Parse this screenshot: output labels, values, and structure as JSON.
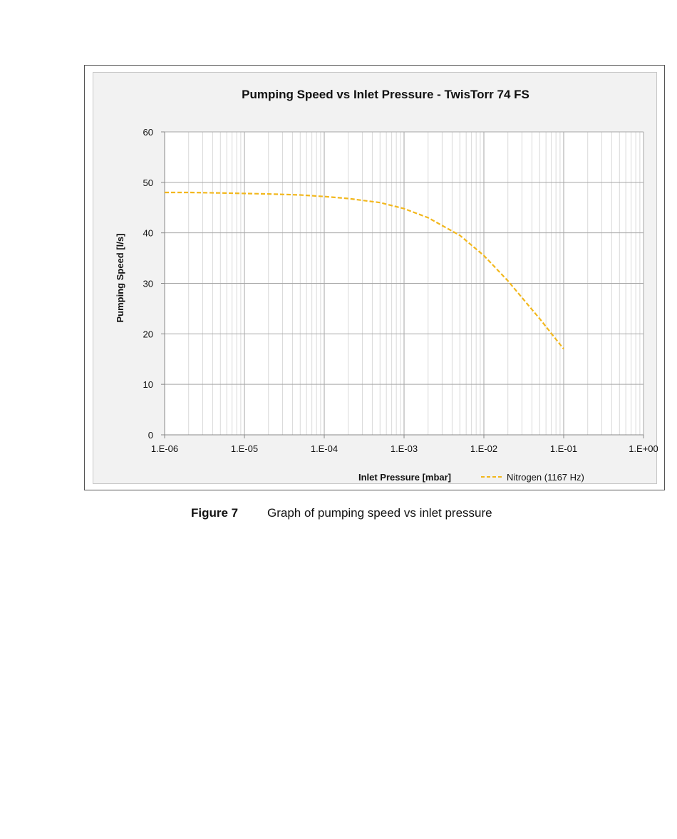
{
  "chart_data": {
    "type": "line",
    "title": "Pumping Speed vs Inlet Pressure - TwisTorr 74 FS",
    "xlabel": "Inlet Pressure [mbar]",
    "ylabel": "Pumping Speed [l/s]",
    "x_scale": "log",
    "xlim": [
      1e-06,
      1
    ],
    "ylim": [
      0,
      60
    ],
    "x_ticks": [
      "1.E-06",
      "1.E-05",
      "1.E-04",
      "1.E-03",
      "1.E-02",
      "1.E-01",
      "1.E+00"
    ],
    "y_ticks": [
      "0",
      "10",
      "20",
      "30",
      "40",
      "50",
      "60"
    ],
    "grid": true,
    "legend_position": "bottom-right",
    "series": [
      {
        "name": "Nitrogen (1167 Hz)",
        "color": "#f2b71c",
        "style": "dashed",
        "x": [
          1e-06,
          2e-06,
          5e-06,
          1e-05,
          2e-05,
          5e-05,
          0.0001,
          0.0002,
          0.0005,
          0.001,
          0.002,
          0.005,
          0.01,
          0.02,
          0.05,
          0.1
        ],
        "y": [
          48,
          48,
          47.9,
          47.8,
          47.7,
          47.5,
          47.2,
          46.8,
          46,
          44.8,
          43,
          39.5,
          35.5,
          30.5,
          23,
          17
        ]
      }
    ]
  },
  "caption": {
    "label": "Figure 7",
    "text": "Graph of pumping speed vs inlet pressure"
  }
}
